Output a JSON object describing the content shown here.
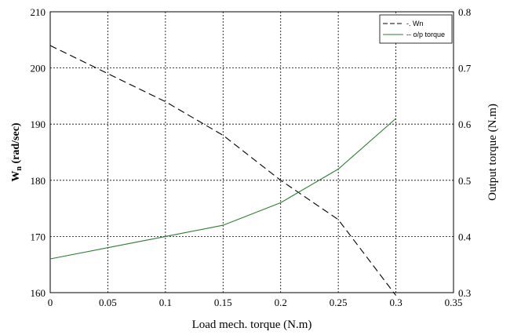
{
  "chart_data": {
    "type": "line",
    "xlabel": "Load mech. torque (N.m)",
    "ylabel_left": "Wn (rad/sec)",
    "ylabel_right": "Output torque (N.m)",
    "xlim": [
      0,
      0.35
    ],
    "ylim_left": [
      160,
      210
    ],
    "ylim_right": [
      0.3,
      0.8
    ],
    "x_ticks": [
      "0",
      "0.05",
      "0.1",
      "0.15",
      "0.2",
      "0.25",
      "0.3",
      "0.35"
    ],
    "y_left_ticks": [
      "160",
      "170",
      "180",
      "190",
      "200",
      "210"
    ],
    "y_right_ticks": [
      "0.3",
      "0.4",
      "0.5",
      "0.6",
      "0.7",
      "0.8"
    ],
    "grid": true,
    "legend_position": "top-right",
    "series": [
      {
        "name": "-. Wn",
        "axis": "left",
        "style": "dashed",
        "color": "#000000",
        "x": [
          0,
          0.05,
          0.1,
          0.15,
          0.2,
          0.25,
          0.3
        ],
        "y": [
          204,
          199,
          194,
          188,
          180,
          173,
          159.5
        ]
      },
      {
        "name": "-- o/p torque",
        "axis": "right",
        "style": "solid",
        "color": "#2e7d32",
        "x": [
          0,
          0.05,
          0.1,
          0.15,
          0.2,
          0.25,
          0.3
        ],
        "y": [
          0.36,
          0.38,
          0.4,
          0.42,
          0.46,
          0.52,
          0.61
        ]
      }
    ]
  }
}
